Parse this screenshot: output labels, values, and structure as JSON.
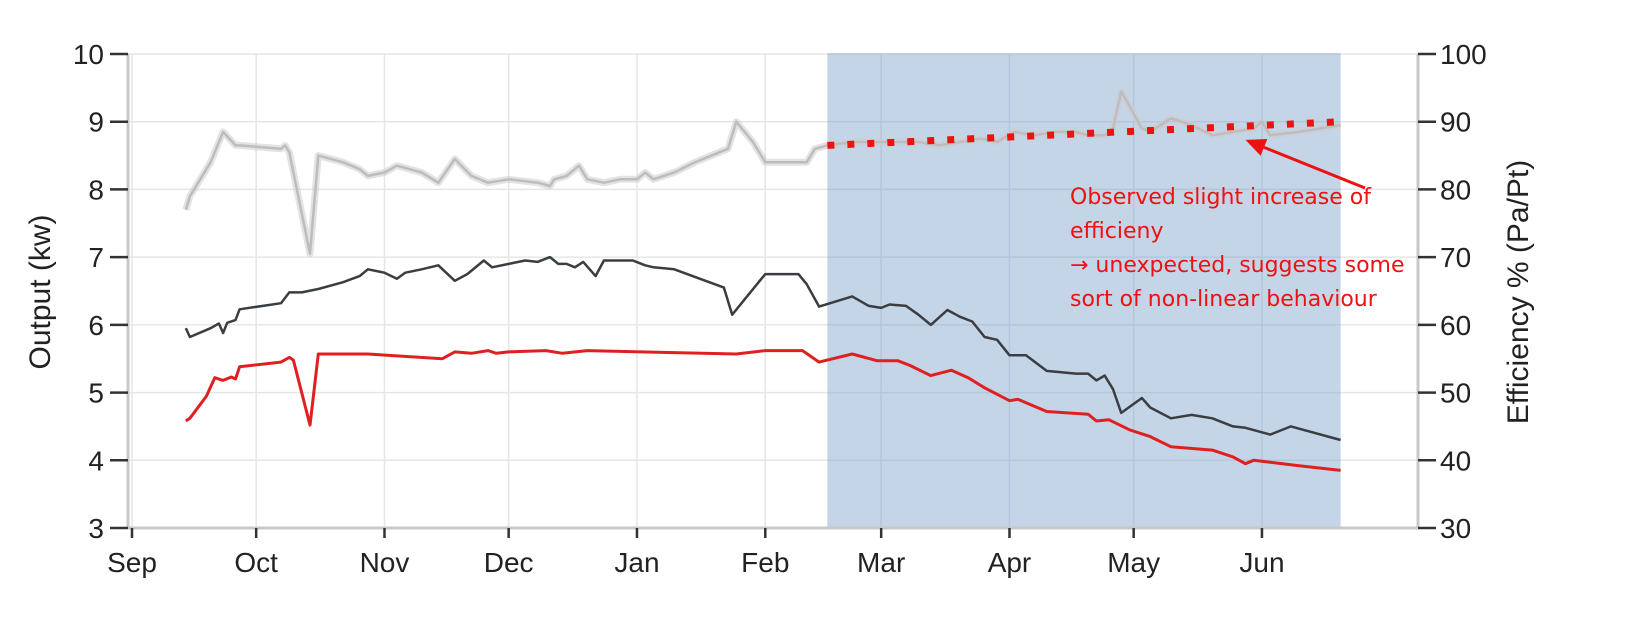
{
  "chart_data": {
    "type": "line",
    "xlabel": "",
    "ylabel": "Output (kw)",
    "y2label": "Efficiency % (Pa/Pt)",
    "x_range": [
      "2020-09-01",
      "2021-06-30"
    ],
    "ylim": [
      3,
      10
    ],
    "y2lim": [
      30,
      100
    ],
    "grid": true,
    "legend": "none",
    "x_ticks": [
      {
        "label": "Sep",
        "date": "2020-09-01"
      },
      {
        "label": "Oct",
        "date": "2020-10-01"
      },
      {
        "label": "Nov",
        "date": "2020-11-01"
      },
      {
        "label": "Dec",
        "date": "2020-12-01"
      },
      {
        "label": "Jan",
        "date": "2021-01-01"
      },
      {
        "label": "Feb",
        "date": "2021-02-01"
      },
      {
        "label": "Mar",
        "date": "2021-03-01"
      },
      {
        "label": "Apr",
        "date": "2021-04-01"
      },
      {
        "label": "May",
        "date": "2021-05-01"
      },
      {
        "label": "Jun",
        "date": "2021-06-01"
      }
    ],
    "y_ticks": [
      3,
      4,
      5,
      6,
      7,
      8,
      9,
      10
    ],
    "y2_ticks": [
      30,
      40,
      50,
      60,
      70,
      80,
      90,
      100
    ],
    "highlight_region": {
      "start": "2021-02-16",
      "end": "2021-06-20",
      "color": "#c5d5e8"
    },
    "series": [
      {
        "axis": "y2",
        "color": "#cccccc",
        "points": [
          [
            "2020-09-14",
            77
          ],
          [
            "2020-09-15",
            79
          ],
          [
            "2020-09-20",
            84
          ],
          [
            "2020-09-23",
            88.5
          ],
          [
            "2020-09-26",
            86.5
          ],
          [
            "2020-09-27",
            86.5
          ],
          [
            "2020-10-07",
            86
          ],
          [
            "2020-10-08",
            86.5
          ],
          [
            "2020-10-09",
            85.5
          ],
          [
            "2020-10-14",
            70.5
          ],
          [
            "2020-10-16",
            85
          ],
          [
            "2020-10-22",
            84
          ],
          [
            "2020-10-26",
            83
          ],
          [
            "2020-10-28",
            82
          ],
          [
            "2020-11-01",
            82.5
          ],
          [
            "2020-11-04",
            83.5
          ],
          [
            "2020-11-07",
            83
          ],
          [
            "2020-11-10",
            82.5
          ],
          [
            "2020-11-14",
            81
          ],
          [
            "2020-11-18",
            84.5
          ],
          [
            "2020-11-22",
            82
          ],
          [
            "2020-11-26",
            81
          ],
          [
            "2020-12-01",
            81.5
          ],
          [
            "2020-12-08",
            81
          ],
          [
            "2020-12-11",
            80.5
          ],
          [
            "2020-12-12",
            81.5
          ],
          [
            "2020-12-15",
            82
          ],
          [
            "2020-12-18",
            83.5
          ],
          [
            "2020-12-20",
            81.5
          ],
          [
            "2020-12-24",
            81
          ],
          [
            "2020-12-28",
            81.5
          ],
          [
            "2021-01-01",
            81.5
          ],
          [
            "2021-01-03",
            82.5
          ],
          [
            "2021-01-05",
            81.5
          ],
          [
            "2021-01-10",
            82.5
          ],
          [
            "2021-01-15",
            84
          ],
          [
            "2021-01-23",
            86
          ],
          [
            "2021-01-25",
            90
          ],
          [
            "2021-01-29",
            87
          ],
          [
            "2021-02-01",
            84
          ],
          [
            "2021-02-08",
            84
          ],
          [
            "2021-02-11",
            84
          ],
          [
            "2021-02-13",
            86
          ],
          [
            "2021-02-16",
            86.5
          ],
          [
            "2021-02-22",
            87
          ],
          [
            "2021-02-28",
            87
          ],
          [
            "2021-03-05",
            87
          ],
          [
            "2021-03-10",
            87
          ],
          [
            "2021-03-15",
            86.5
          ],
          [
            "2021-03-20",
            87
          ],
          [
            "2021-03-25",
            87.5
          ],
          [
            "2021-03-29",
            87
          ],
          [
            "2021-04-02",
            88.5
          ],
          [
            "2021-04-07",
            88
          ],
          [
            "2021-04-12",
            88.5
          ],
          [
            "2021-04-17",
            88.5
          ],
          [
            "2021-04-20",
            88
          ],
          [
            "2021-04-24",
            88
          ],
          [
            "2021-04-26",
            89
          ],
          [
            "2021-04-28",
            94.5
          ],
          [
            "2021-05-03",
            89
          ],
          [
            "2021-05-05",
            88.5
          ],
          [
            "2021-05-10",
            90.5
          ],
          [
            "2021-05-15",
            89.5
          ],
          [
            "2021-05-20",
            88
          ],
          [
            "2021-05-25",
            88.5
          ],
          [
            "2021-05-30",
            89
          ],
          [
            "2021-06-01",
            90
          ],
          [
            "2021-06-03",
            88
          ],
          [
            "2021-06-10",
            88.5
          ],
          [
            "2021-06-20",
            89.5
          ]
        ]
      },
      {
        "axis": "y",
        "color": "#3a3d42",
        "points": [
          [
            "2020-09-14",
            5.95
          ],
          [
            "2020-09-15",
            5.82
          ],
          [
            "2020-09-20",
            5.95
          ],
          [
            "2020-09-22",
            6.02
          ],
          [
            "2020-09-23",
            5.88
          ],
          [
            "2020-09-24",
            6.03
          ],
          [
            "2020-09-26",
            6.07
          ],
          [
            "2020-09-27",
            6.23
          ],
          [
            "2020-10-07",
            6.32
          ],
          [
            "2020-10-09",
            6.48
          ],
          [
            "2020-10-12",
            6.48
          ],
          [
            "2020-10-16",
            6.53
          ],
          [
            "2020-10-22",
            6.63
          ],
          [
            "2020-10-26",
            6.72
          ],
          [
            "2020-10-28",
            6.82
          ],
          [
            "2020-11-01",
            6.77
          ],
          [
            "2020-11-04",
            6.68
          ],
          [
            "2020-11-06",
            6.77
          ],
          [
            "2020-11-10",
            6.82
          ],
          [
            "2020-11-14",
            6.88
          ],
          [
            "2020-11-18",
            6.65
          ],
          [
            "2020-11-21",
            6.75
          ],
          [
            "2020-11-25",
            6.95
          ],
          [
            "2020-11-27",
            6.85
          ],
          [
            "2020-12-01",
            6.9
          ],
          [
            "2020-12-05",
            6.95
          ],
          [
            "2020-12-08",
            6.93
          ],
          [
            "2020-12-11",
            7.0
          ],
          [
            "2020-12-13",
            6.9
          ],
          [
            "2020-12-15",
            6.9
          ],
          [
            "2020-12-17",
            6.85
          ],
          [
            "2020-12-19",
            6.93
          ],
          [
            "2020-12-22",
            6.72
          ],
          [
            "2020-12-24",
            6.95
          ],
          [
            "2020-12-31",
            6.95
          ],
          [
            "2021-01-03",
            6.88
          ],
          [
            "2021-01-05",
            6.85
          ],
          [
            "2021-01-10",
            6.82
          ],
          [
            "2021-01-22",
            6.55
          ],
          [
            "2021-01-24",
            6.15
          ],
          [
            "2021-01-30",
            6.6
          ],
          [
            "2021-02-01",
            6.75
          ],
          [
            "2021-02-09",
            6.75
          ],
          [
            "2021-02-11",
            6.6
          ],
          [
            "2021-02-14",
            6.27
          ],
          [
            "2021-02-22",
            6.42
          ],
          [
            "2021-02-26",
            6.28
          ],
          [
            "2021-03-01",
            6.25
          ],
          [
            "2021-03-03",
            6.3
          ],
          [
            "2021-03-07",
            6.28
          ],
          [
            "2021-03-10",
            6.15
          ],
          [
            "2021-03-13",
            6.0
          ],
          [
            "2021-03-17",
            6.22
          ],
          [
            "2021-03-20",
            6.12
          ],
          [
            "2021-03-23",
            6.05
          ],
          [
            "2021-03-26",
            5.82
          ],
          [
            "2021-03-29",
            5.78
          ],
          [
            "2021-04-01",
            5.55
          ],
          [
            "2021-04-05",
            5.55
          ],
          [
            "2021-04-10",
            5.32
          ],
          [
            "2021-04-17",
            5.28
          ],
          [
            "2021-04-20",
            5.28
          ],
          [
            "2021-04-22",
            5.18
          ],
          [
            "2021-04-24",
            5.25
          ],
          [
            "2021-04-26",
            5.05
          ],
          [
            "2021-04-28",
            4.7
          ],
          [
            "2021-05-03",
            4.92
          ],
          [
            "2021-05-05",
            4.78
          ],
          [
            "2021-05-10",
            4.62
          ],
          [
            "2021-05-15",
            4.67
          ],
          [
            "2021-05-20",
            4.62
          ],
          [
            "2021-05-25",
            4.5
          ],
          [
            "2021-05-28",
            4.48
          ],
          [
            "2021-06-03",
            4.38
          ],
          [
            "2021-06-08",
            4.5
          ],
          [
            "2021-06-20",
            4.3
          ]
        ]
      },
      {
        "axis": "y",
        "color": "#e02020",
        "points": [
          [
            "2020-09-14",
            4.58
          ],
          [
            "2020-09-15",
            4.62
          ],
          [
            "2020-09-19",
            4.95
          ],
          [
            "2020-09-21",
            5.22
          ],
          [
            "2020-09-23",
            5.18
          ],
          [
            "2020-09-25",
            5.23
          ],
          [
            "2020-09-26",
            5.2
          ],
          [
            "2020-09-27",
            5.38
          ],
          [
            "2020-10-07",
            5.45
          ],
          [
            "2020-10-09",
            5.52
          ],
          [
            "2020-10-10",
            5.48
          ],
          [
            "2020-10-14",
            4.52
          ],
          [
            "2020-10-16",
            5.57
          ],
          [
            "2020-10-28",
            5.57
          ],
          [
            "2020-11-15",
            5.5
          ],
          [
            "2020-11-18",
            5.6
          ],
          [
            "2020-11-22",
            5.58
          ],
          [
            "2020-11-26",
            5.62
          ],
          [
            "2020-11-28",
            5.58
          ],
          [
            "2020-12-01",
            5.6
          ],
          [
            "2020-12-10",
            5.62
          ],
          [
            "2020-12-14",
            5.58
          ],
          [
            "2020-12-20",
            5.62
          ],
          [
            "2021-01-25",
            5.57
          ],
          [
            "2021-02-01",
            5.62
          ],
          [
            "2021-02-10",
            5.62
          ],
          [
            "2021-02-14",
            5.45
          ],
          [
            "2021-02-22",
            5.57
          ],
          [
            "2021-02-28",
            5.47
          ],
          [
            "2021-03-05",
            5.47
          ],
          [
            "2021-03-08",
            5.4
          ],
          [
            "2021-03-13",
            5.25
          ],
          [
            "2021-03-18",
            5.33
          ],
          [
            "2021-03-22",
            5.22
          ],
          [
            "2021-03-26",
            5.07
          ],
          [
            "2021-04-01",
            4.88
          ],
          [
            "2021-04-03",
            4.9
          ],
          [
            "2021-04-10",
            4.72
          ],
          [
            "2021-04-20",
            4.68
          ],
          [
            "2021-04-22",
            4.58
          ],
          [
            "2021-04-25",
            4.6
          ],
          [
            "2021-04-30",
            4.45
          ],
          [
            "2021-05-05",
            4.35
          ],
          [
            "2021-05-10",
            4.2
          ],
          [
            "2021-05-20",
            4.15
          ],
          [
            "2021-05-25",
            4.05
          ],
          [
            "2021-05-28",
            3.95
          ],
          [
            "2021-05-30",
            4.0
          ],
          [
            "2021-06-03",
            3.97
          ],
          [
            "2021-06-10",
            3.92
          ],
          [
            "2021-06-20",
            3.85
          ]
        ]
      }
    ],
    "trendline": {
      "axis": "y2",
      "color": "#ee1111",
      "style": "dotted",
      "points": [
        [
          "2021-02-16",
          86.5
        ],
        [
          "2021-06-20",
          90
        ]
      ]
    },
    "annotation": {
      "lines": [
        "Observed slight increase of",
        "efficieny",
        "→ unexpected, suggests some",
        "sort of non-linear behaviour"
      ],
      "color": "#ee1111",
      "arrow_to": [
        "2021-05-28",
        88.5
      ]
    }
  }
}
